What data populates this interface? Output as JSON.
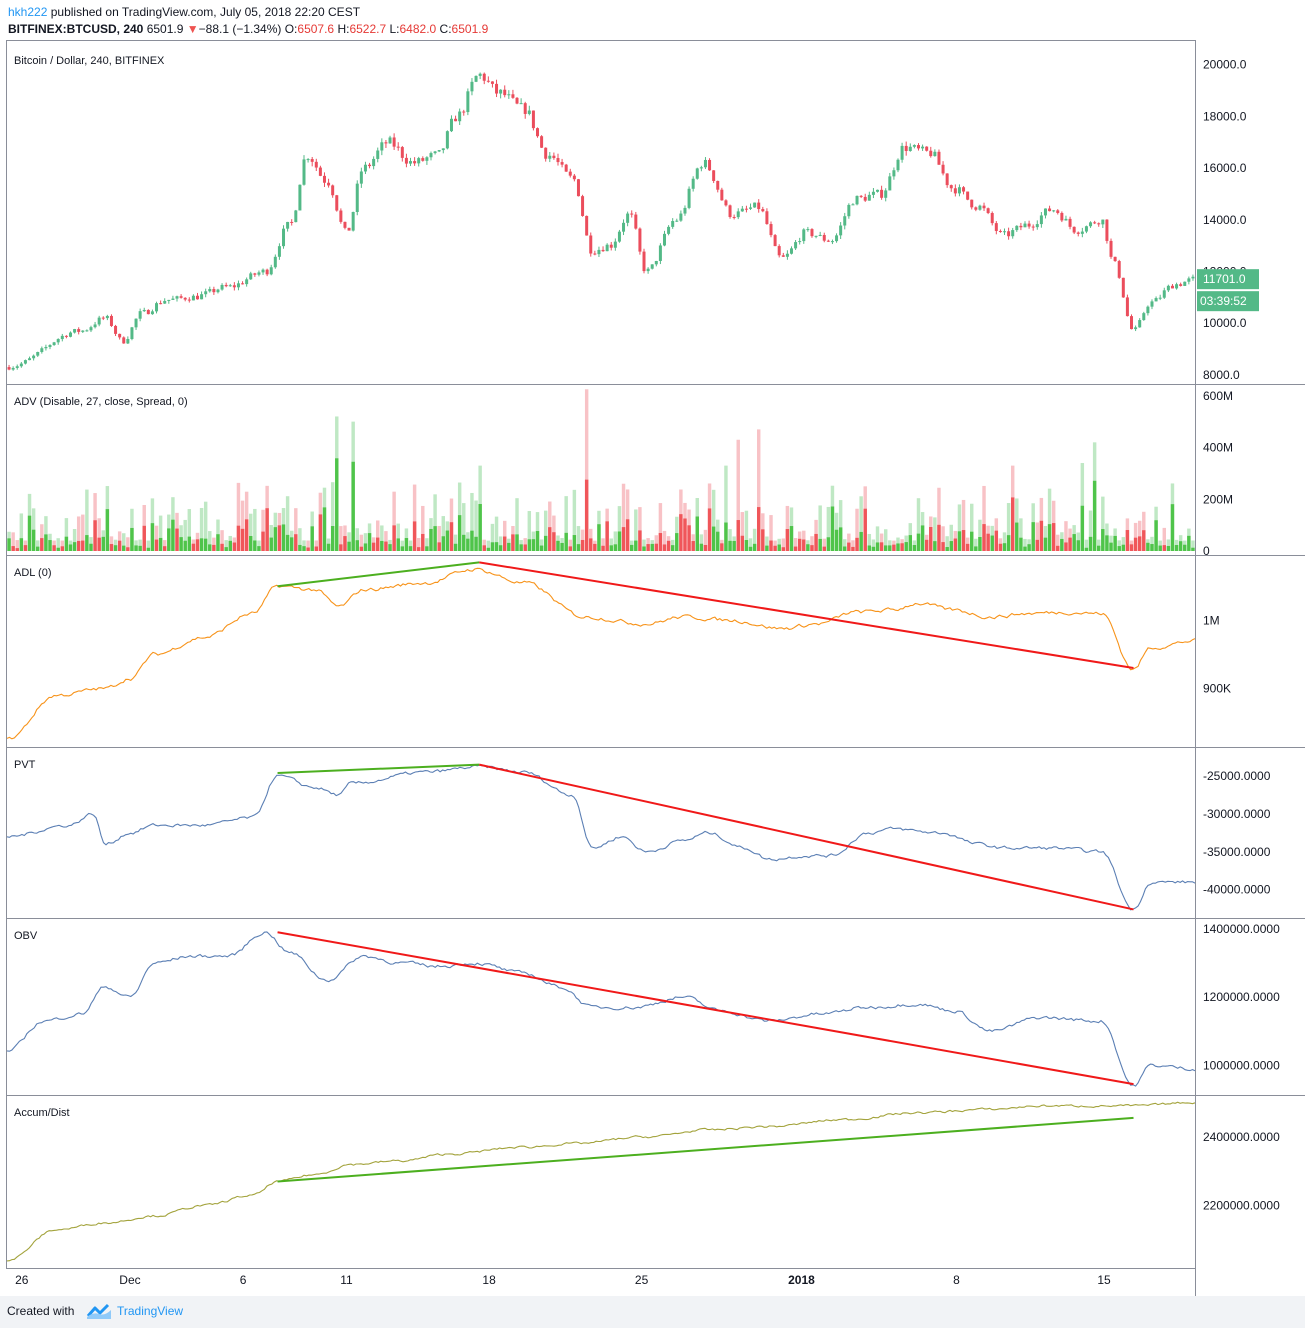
{
  "header": {
    "user": "hkh222",
    "published_text": "published on TradingView.com, July 05, 2018 22:20 CEST",
    "symbol": "BITFINEX:BTCUSD, 240",
    "last": "6501.9",
    "change_arrow": "▼",
    "change": "−88.1 (−1.34%)",
    "o_label": "O:",
    "o_value": "6507.6",
    "h_label": "H:",
    "h_value": "6522.7",
    "l_label": "L:",
    "l_value": "6482.0",
    "c_label": "C:",
    "c_value": "6501.9"
  },
  "footer": {
    "created_with": "Created with",
    "brand": "TradingView"
  },
  "colors": {
    "up": "#53b987",
    "down": "#eb4d5c",
    "adl": "#f7931a",
    "pvt": "#5b7fb4",
    "obv": "#5b7fb4",
    "ad": "#a3a33c",
    "trend_green": "#4caf1f",
    "trend_red": "#f01919",
    "badge": "#53b987"
  },
  "chart_data": [
    {
      "type": "candlestick",
      "title": "Bitcoin / Dollar, 240, BITFINEX",
      "yticks": [
        "20000.0",
        "18000.0",
        "16000.0",
        "14000.0",
        "12000.0",
        "10000.0",
        "8000.0"
      ],
      "ylim": [
        7800,
        20800
      ],
      "price_badge": "11701.0",
      "countdown_badge": "03:39:52",
      "anchors": [
        {
          "t": 0,
          "v": 8300
        },
        {
          "t": 3,
          "v": 9700
        },
        {
          "t": 4,
          "v": 10200
        },
        {
          "t": 4.7,
          "v": 9300
        },
        {
          "t": 5.5,
          "v": 10400
        },
        {
          "t": 6.5,
          "v": 10900
        },
        {
          "t": 7.5,
          "v": 11000
        },
        {
          "t": 9,
          "v": 11400
        },
        {
          "t": 10.5,
          "v": 12000
        },
        {
          "t": 11.5,
          "v": 13800
        },
        {
          "t": 12.2,
          "v": 16500
        },
        {
          "t": 13,
          "v": 15500
        },
        {
          "t": 13.8,
          "v": 13500
        },
        {
          "t": 14.5,
          "v": 16000
        },
        {
          "t": 15.5,
          "v": 17000
        },
        {
          "t": 16.5,
          "v": 16200
        },
        {
          "t": 17.5,
          "v": 16500
        },
        {
          "t": 18.3,
          "v": 18000
        },
        {
          "t": 19.2,
          "v": 19600
        },
        {
          "t": 20,
          "v": 18900
        },
        {
          "t": 21,
          "v": 18300
        },
        {
          "t": 22,
          "v": 16500
        },
        {
          "t": 23,
          "v": 15600
        },
        {
          "t": 23.8,
          "v": 12800
        },
        {
          "t": 24.5,
          "v": 13000
        },
        {
          "t": 25.3,
          "v": 14200
        },
        {
          "t": 26,
          "v": 12000
        },
        {
          "t": 27.2,
          "v": 14000
        },
        {
          "t": 28.3,
          "v": 16200
        },
        {
          "t": 29.5,
          "v": 14200
        },
        {
          "t": 30.5,
          "v": 14500
        },
        {
          "t": 31.5,
          "v": 12500
        },
        {
          "t": 32.5,
          "v": 13500
        },
        {
          "t": 33.5,
          "v": 13200
        },
        {
          "t": 34.5,
          "v": 14800
        },
        {
          "t": 35.5,
          "v": 15000
        },
        {
          "t": 36.5,
          "v": 16800
        },
        {
          "t": 37.5,
          "v": 16600
        },
        {
          "t": 38.5,
          "v": 15200
        },
        {
          "t": 39.5,
          "v": 14500
        },
        {
          "t": 40.5,
          "v": 13400
        },
        {
          "t": 41.5,
          "v": 13800
        },
        {
          "t": 42.5,
          "v": 14400
        },
        {
          "t": 43.5,
          "v": 13600
        },
        {
          "t": 44.5,
          "v": 14000
        },
        {
          "t": 45,
          "v": 12300
        },
        {
          "t": 45.8,
          "v": 9700
        },
        {
          "t": 46.5,
          "v": 10800
        },
        {
          "t": 47.5,
          "v": 11500
        },
        {
          "t": 48.3,
          "v": 11700
        }
      ]
    },
    {
      "type": "bar",
      "title": "ADV (Disable, 27, close, Spread, 0)",
      "yticks": [
        "600M",
        "400M",
        "200M",
        "0"
      ],
      "ylim": [
        0,
        630
      ],
      "unit": "M"
    },
    {
      "type": "line",
      "title": "ADL (0)",
      "yticks": [
        "1M",
        "900K"
      ],
      "ylim": [
        820,
        1090
      ],
      "tick_values": [
        1000,
        900
      ],
      "anchors": [
        {
          "t": 0,
          "v": 825
        },
        {
          "t": 2,
          "v": 890
        },
        {
          "t": 4,
          "v": 900
        },
        {
          "t": 5,
          "v": 915
        },
        {
          "t": 6,
          "v": 950
        },
        {
          "t": 8,
          "v": 975
        },
        {
          "t": 10,
          "v": 1010
        },
        {
          "t": 11,
          "v": 1050
        },
        {
          "t": 12.5,
          "v": 1045
        },
        {
          "t": 13.5,
          "v": 1020
        },
        {
          "t": 14.5,
          "v": 1045
        },
        {
          "t": 17,
          "v": 1055
        },
        {
          "t": 19,
          "v": 1075
        },
        {
          "t": 21,
          "v": 1055
        },
        {
          "t": 23.5,
          "v": 1005
        },
        {
          "t": 26,
          "v": 995
        },
        {
          "t": 27.5,
          "v": 1005
        },
        {
          "t": 29.5,
          "v": 1000
        },
        {
          "t": 31.5,
          "v": 988
        },
        {
          "t": 33,
          "v": 995
        },
        {
          "t": 34.5,
          "v": 1012
        },
        {
          "t": 36,
          "v": 1015
        },
        {
          "t": 37,
          "v": 1025
        },
        {
          "t": 38.5,
          "v": 1015
        },
        {
          "t": 40,
          "v": 1005
        },
        {
          "t": 41.5,
          "v": 1010
        },
        {
          "t": 43,
          "v": 1012
        },
        {
          "t": 44.5,
          "v": 1010
        },
        {
          "t": 45.8,
          "v": 928
        },
        {
          "t": 46.5,
          "v": 960
        },
        {
          "t": 48.3,
          "v": 970
        }
      ],
      "trendlines": [
        {
          "color": "green",
          "from": {
            "t": 11,
            "v": 1050
          },
          "to": {
            "t": 19.2,
            "v": 1085
          }
        },
        {
          "color": "red",
          "from": {
            "t": 19.2,
            "v": 1085
          },
          "to": {
            "t": 45.8,
            "v": 930
          }
        }
      ]
    },
    {
      "type": "line",
      "title": "PVT",
      "yticks": [
        "-25000.0000",
        "-30000.0000",
        "-35000.0000",
        "-40000.0000"
      ],
      "ylim": [
        -43200,
        -21700
      ],
      "tick_values": [
        -25000,
        -30000,
        -35000,
        -40000
      ],
      "anchors": [
        {
          "t": 0,
          "v": -33000
        },
        {
          "t": 2.5,
          "v": -31500
        },
        {
          "t": 3.5,
          "v": -30000
        },
        {
          "t": 4,
          "v": -34000
        },
        {
          "t": 5,
          "v": -32500
        },
        {
          "t": 6,
          "v": -31500
        },
        {
          "t": 8,
          "v": -31500
        },
        {
          "t": 10,
          "v": -30500
        },
        {
          "t": 11,
          "v": -25000
        },
        {
          "t": 12.5,
          "v": -26500
        },
        {
          "t": 13.5,
          "v": -27500
        },
        {
          "t": 14,
          "v": -26000
        },
        {
          "t": 17,
          "v": -24500
        },
        {
          "t": 19.2,
          "v": -23800
        },
        {
          "t": 21,
          "v": -24500
        },
        {
          "t": 23,
          "v": -27500
        },
        {
          "t": 23.8,
          "v": -34500
        },
        {
          "t": 25,
          "v": -33000
        },
        {
          "t": 26,
          "v": -35000
        },
        {
          "t": 27.5,
          "v": -33500
        },
        {
          "t": 28.5,
          "v": -32500
        },
        {
          "t": 30,
          "v": -34500
        },
        {
          "t": 31,
          "v": -36000
        },
        {
          "t": 32.5,
          "v": -35500
        },
        {
          "t": 33.5,
          "v": -35500
        },
        {
          "t": 35,
          "v": -32500
        },
        {
          "t": 36,
          "v": -32000
        },
        {
          "t": 38,
          "v": -32500
        },
        {
          "t": 39.5,
          "v": -34000
        },
        {
          "t": 40.5,
          "v": -34500
        },
        {
          "t": 42.5,
          "v": -34500
        },
        {
          "t": 44.5,
          "v": -35000
        },
        {
          "t": 45.8,
          "v": -42600
        },
        {
          "t": 46.5,
          "v": -39000
        },
        {
          "t": 48.3,
          "v": -39000
        }
      ],
      "trendlines": [
        {
          "color": "green",
          "from": {
            "t": 11,
            "v": -24600
          },
          "to": {
            "t": 19.2,
            "v": -23500
          }
        },
        {
          "color": "red",
          "from": {
            "t": 19.2,
            "v": -23500
          },
          "to": {
            "t": 45.8,
            "v": -42600
          }
        }
      ]
    },
    {
      "type": "line",
      "title": "OBV",
      "yticks": [
        "1400000.0000",
        "1200000.0000",
        "1000000.0000"
      ],
      "ylim": [
        925000,
        1420000
      ],
      "tick_values": [
        1400000,
        1200000,
        1000000
      ],
      "anchors": [
        {
          "t": 0,
          "v": 1040000
        },
        {
          "t": 1.5,
          "v": 1130000
        },
        {
          "t": 3,
          "v": 1150000
        },
        {
          "t": 4,
          "v": 1230000
        },
        {
          "t": 5,
          "v": 1200000
        },
        {
          "t": 6,
          "v": 1300000
        },
        {
          "t": 7.5,
          "v": 1320000
        },
        {
          "t": 9,
          "v": 1320000
        },
        {
          "t": 10.5,
          "v": 1390000
        },
        {
          "t": 11.5,
          "v": 1330000
        },
        {
          "t": 13,
          "v": 1250000
        },
        {
          "t": 14.5,
          "v": 1320000
        },
        {
          "t": 16,
          "v": 1300000
        },
        {
          "t": 17.5,
          "v": 1290000
        },
        {
          "t": 19,
          "v": 1300000
        },
        {
          "t": 21,
          "v": 1270000
        },
        {
          "t": 22.5,
          "v": 1230000
        },
        {
          "t": 23.8,
          "v": 1170000
        },
        {
          "t": 25.5,
          "v": 1170000
        },
        {
          "t": 27.5,
          "v": 1200000
        },
        {
          "t": 29,
          "v": 1160000
        },
        {
          "t": 31,
          "v": 1130000
        },
        {
          "t": 33,
          "v": 1150000
        },
        {
          "t": 35,
          "v": 1170000
        },
        {
          "t": 37,
          "v": 1180000
        },
        {
          "t": 38.5,
          "v": 1160000
        },
        {
          "t": 40,
          "v": 1100000
        },
        {
          "t": 42,
          "v": 1140000
        },
        {
          "t": 44.5,
          "v": 1130000
        },
        {
          "t": 45.8,
          "v": 940000
        },
        {
          "t": 46.5,
          "v": 1000000
        },
        {
          "t": 48.3,
          "v": 990000
        }
      ],
      "trendlines": [
        {
          "color": "red",
          "from": {
            "t": 11,
            "v": 1390000
          },
          "to": {
            "t": 45.8,
            "v": 945000
          }
        }
      ]
    },
    {
      "type": "line",
      "title": "Accum/Dist",
      "yticks": [
        "2400000.0000",
        "2200000.0000"
      ],
      "ylim": [
        2030000,
        2510000
      ],
      "tick_values": [
        2400000,
        2200000
      ],
      "anchors": [
        {
          "t": 0,
          "v": 2040000
        },
        {
          "t": 2,
          "v": 2130000
        },
        {
          "t": 4,
          "v": 2150000
        },
        {
          "t": 6,
          "v": 2170000
        },
        {
          "t": 8,
          "v": 2200000
        },
        {
          "t": 10,
          "v": 2230000
        },
        {
          "t": 11,
          "v": 2270000
        },
        {
          "t": 12.5,
          "v": 2290000
        },
        {
          "t": 14,
          "v": 2320000
        },
        {
          "t": 16,
          "v": 2330000
        },
        {
          "t": 18,
          "v": 2350000
        },
        {
          "t": 21,
          "v": 2370000
        },
        {
          "t": 23,
          "v": 2380000
        },
        {
          "t": 26,
          "v": 2400000
        },
        {
          "t": 28.5,
          "v": 2420000
        },
        {
          "t": 31,
          "v": 2430000
        },
        {
          "t": 34,
          "v": 2450000
        },
        {
          "t": 37,
          "v": 2470000
        },
        {
          "t": 40,
          "v": 2480000
        },
        {
          "t": 42,
          "v": 2490000
        },
        {
          "t": 44.5,
          "v": 2490000
        },
        {
          "t": 45.8,
          "v": 2490000
        },
        {
          "t": 48.3,
          "v": 2500000
        }
      ],
      "trendlines": [
        {
          "color": "green",
          "from": {
            "t": 11,
            "v": 2270000
          },
          "to": {
            "t": 45.8,
            "v": 2455000
          }
        }
      ]
    }
  ],
  "xaxis": {
    "ticks": [
      {
        "t": 0.6,
        "label": "26"
      },
      {
        "t": 5.0,
        "label": "Dec"
      },
      {
        "t": 9.6,
        "label": "6"
      },
      {
        "t": 13.8,
        "label": "11"
      },
      {
        "t": 19.6,
        "label": "18"
      },
      {
        "t": 25.8,
        "label": "25"
      },
      {
        "t": 32.3,
        "label": "2018",
        "bold": true
      },
      {
        "t": 38.6,
        "label": "8"
      },
      {
        "t": 44.6,
        "label": "15"
      }
    ],
    "tmax": 48.3
  }
}
